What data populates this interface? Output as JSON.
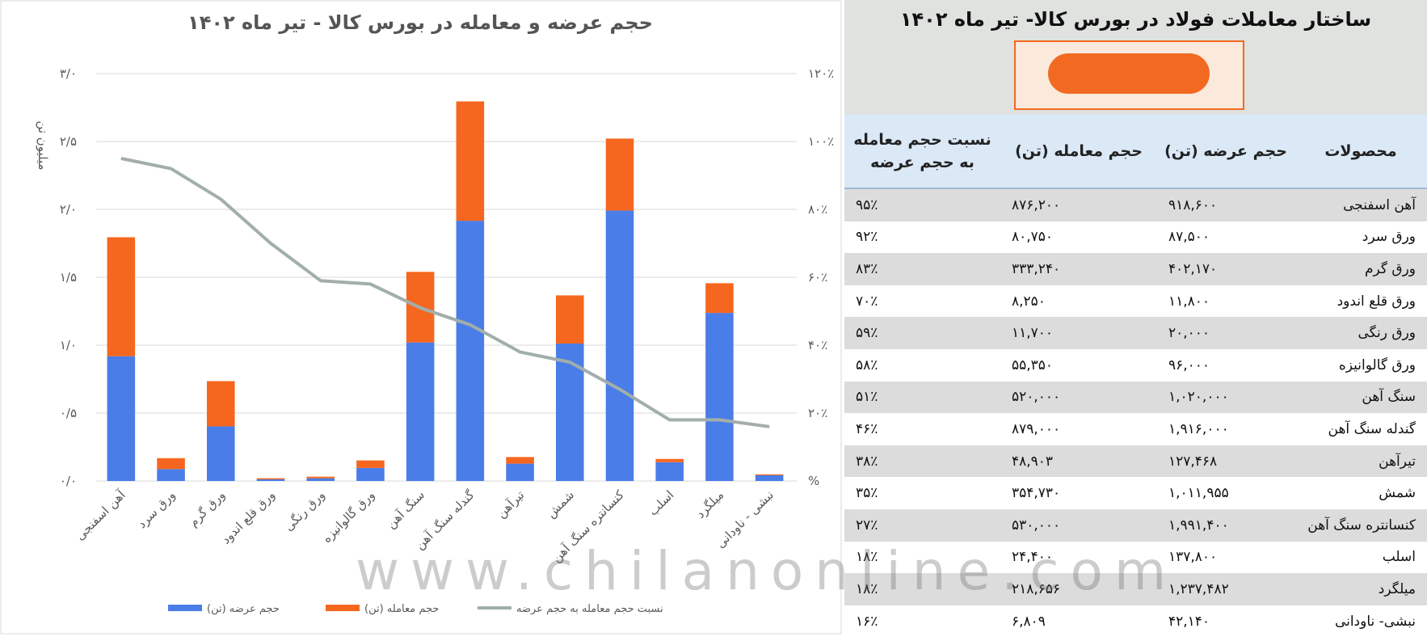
{
  "chart_data": {
    "type": "bar",
    "stacked": true,
    "title": "حجم عرضه و معامله در بورس کالا - تیر ماه ۱۴۰۲",
    "y_label": "میلیون تن",
    "categories": [
      "آهن اسفنجی",
      "ورق سرد",
      "ورق گرم",
      "ورق قلع اندود",
      "ورق رنگی",
      "ورق گالوانیزه",
      "سنگ آهن",
      "گندله سنگ آهن",
      "تیرآهن",
      "شمش",
      "کنسانتره سنگ آهن",
      "اسلب",
      "میلگرد",
      "نبشی - ناودانی"
    ],
    "series": [
      {
        "name": "حجم عرضه (تن)",
        "color": "#4a7de8",
        "values": [
          0.9186,
          0.0875,
          0.40217,
          0.0118,
          0.02,
          0.096,
          1.02,
          1.916,
          0.127468,
          1.011955,
          1.9914,
          0.1378,
          1.237482,
          0.04214
        ]
      },
      {
        "name": "حجم معامله (تن)",
        "color": "#f5671f",
        "values": [
          0.8762,
          0.08075,
          0.33324,
          0.00825,
          0.0117,
          0.05535,
          0.52,
          0.879,
          0.048903,
          0.35473,
          0.53,
          0.0244,
          0.218656,
          0.006809
        ]
      },
      {
        "name": "نسبت حجم معامله به حجم عرضه",
        "color": "#a2aeab",
        "type": "line",
        "axis": "y2",
        "values": [
          95,
          92,
          83,
          70,
          59,
          58,
          51,
          46,
          38,
          35,
          27,
          18,
          18,
          16
        ]
      }
    ],
    "ylim": [
      0,
      3
    ],
    "yticks": [
      {
        "value": 0,
        "label": "۰/۰"
      },
      {
        "value": 0.5,
        "label": "۰/۵"
      },
      {
        "value": 1,
        "label": "۱/۰"
      },
      {
        "value": 1.5,
        "label": "۱/۵"
      },
      {
        "value": 2,
        "label": "۲/۰"
      },
      {
        "value": 2.5,
        "label": "۲/۵"
      },
      {
        "value": 3,
        "label": "۳/۰"
      }
    ],
    "y2lim": [
      0,
      120
    ],
    "y2ticks": [
      {
        "value": 0,
        "label": "%"
      },
      {
        "value": 20,
        "label": "۲۰٪"
      },
      {
        "value": 40,
        "label": "۴۰٪"
      },
      {
        "value": 60,
        "label": "۶۰٪"
      },
      {
        "value": 80,
        "label": "۸۰٪"
      },
      {
        "value": 100,
        "label": "۱۰۰٪"
      },
      {
        "value": 120,
        "label": "۱۲۰٪"
      }
    ],
    "grid": true
  },
  "table": {
    "title": "ساختار معاملات فولاد در بورس کالا- تیر ماه ۱۴۰۲",
    "header": [
      "محصولات",
      "حجم عرضه (تن)",
      "حجم معامله (تن)",
      "نسبت حجم معامله به حجم عرضه"
    ],
    "rows": [
      [
        "آهن اسفنجی",
        "۹۱۸,۶۰۰",
        "۸۷۶,۲۰۰",
        "۹۵٪"
      ],
      [
        "ورق سرد",
        "۸۷,۵۰۰",
        "۸۰,۷۵۰",
        "۹۲٪"
      ],
      [
        "ورق گرم",
        "۴۰۲,۱۷۰",
        "۳۳۳,۲۴۰",
        "۸۳٪"
      ],
      [
        "ورق قلع اندود",
        "۱۱,۸۰۰",
        "۸,۲۵۰",
        "۷۰٪"
      ],
      [
        "ورق رنگی",
        "۲۰,۰۰۰",
        "۱۱,۷۰۰",
        "۵۹٪"
      ],
      [
        "ورق گالوانیزه",
        "۹۶,۰۰۰",
        "۵۵,۳۵۰",
        "۵۸٪"
      ],
      [
        "سنگ آهن",
        "۱,۰۲۰,۰۰۰",
        "۵۲۰,۰۰۰",
        "۵۱٪"
      ],
      [
        "گندله سنگ آهن",
        "۱,۹۱۶,۰۰۰",
        "۸۷۹,۰۰۰",
        "۴۶٪"
      ],
      [
        "تیرآهن",
        "۱۲۷,۴۶۸",
        "۴۸,۹۰۳",
        "۳۸٪"
      ],
      [
        "شمش",
        "۱,۰۱۱,۹۵۵",
        "۳۵۴,۷۳۰",
        "۳۵٪"
      ],
      [
        "کنسانتره سنگ آهن",
        "۱,۹۹۱,۴۰۰",
        "۵۳۰,۰۰۰",
        "۲۷٪"
      ],
      [
        "اسلب",
        "۱۳۷,۸۰۰",
        "۲۴,۴۰۰",
        "۱۸٪"
      ],
      [
        "میلگرد",
        "۱,۲۳۷,۴۸۲",
        "۲۱۸,۶۵۶",
        "۱۸٪"
      ],
      [
        "نبشی- ناودانی",
        "۴۲,۱۴۰",
        "۶,۸۰۹",
        "۱۶٪"
      ]
    ]
  },
  "watermark": "www.chilanonline.com"
}
